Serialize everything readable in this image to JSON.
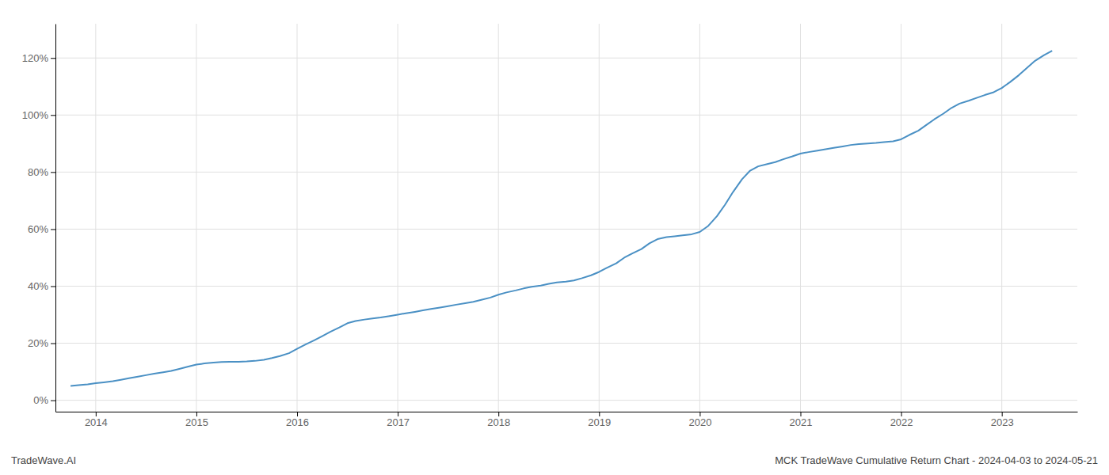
{
  "chart_data": {
    "type": "line",
    "title": "MCK TradeWave Cumulative Return Chart - 2024-04-03 to 2024-05-21",
    "annotations": [
      "TradeWave.AI"
    ],
    "color": "#4a90c4",
    "grid": true,
    "xlim": [
      2013.6,
      2023.75
    ],
    "xticks": [
      2014,
      2015,
      2016,
      2017,
      2018,
      2019,
      2020,
      2021,
      2022,
      2023
    ],
    "ylim": [
      -4,
      132
    ],
    "yticks": [
      {
        "value": 0,
        "label": "0%"
      },
      {
        "value": 20,
        "label": "20%"
      },
      {
        "value": 40,
        "label": "40%"
      },
      {
        "value": 60,
        "label": "60%"
      },
      {
        "value": 80,
        "label": "80%"
      },
      {
        "value": 100,
        "label": "100%"
      },
      {
        "value": 120,
        "label": "120%"
      }
    ],
    "x": [
      2013.75,
      2013.83,
      2013.92,
      2014.0,
      2014.08,
      2014.17,
      2014.25,
      2014.33,
      2014.42,
      2014.5,
      2014.58,
      2014.67,
      2014.75,
      2014.83,
      2014.92,
      2015.0,
      2015.08,
      2015.17,
      2015.25,
      2015.33,
      2015.42,
      2015.5,
      2015.58,
      2015.67,
      2015.75,
      2015.83,
      2015.92,
      2016.0,
      2016.08,
      2016.17,
      2016.25,
      2016.33,
      2016.42,
      2016.5,
      2016.58,
      2016.67,
      2016.75,
      2016.83,
      2016.92,
      2017.0,
      2017.08,
      2017.17,
      2017.25,
      2017.33,
      2017.42,
      2017.5,
      2017.58,
      2017.67,
      2017.75,
      2017.83,
      2017.92,
      2018.0,
      2018.08,
      2018.17,
      2018.25,
      2018.33,
      2018.42,
      2018.5,
      2018.58,
      2018.67,
      2018.75,
      2018.83,
      2018.92,
      2019.0,
      2019.08,
      2019.17,
      2019.25,
      2019.33,
      2019.42,
      2019.5,
      2019.58,
      2019.67,
      2019.75,
      2019.83,
      2019.92,
      2020.0,
      2020.08,
      2020.17,
      2020.25,
      2020.33,
      2020.42,
      2020.5,
      2020.58,
      2020.67,
      2020.75,
      2020.83,
      2020.92,
      2021.0,
      2021.08,
      2021.17,
      2021.25,
      2021.33,
      2021.42,
      2021.5,
      2021.58,
      2021.67,
      2021.75,
      2021.83,
      2021.92,
      2022.0,
      2022.08,
      2022.17,
      2022.25,
      2022.33,
      2022.42,
      2022.5,
      2022.58,
      2022.67,
      2022.75,
      2022.83,
      2022.92,
      2023.0,
      2023.08,
      2023.17,
      2023.25,
      2023.33,
      2023.42,
      2023.5
    ],
    "values": [
      5.0,
      5.3,
      5.6,
      6.0,
      6.3,
      6.7,
      7.2,
      7.7,
      8.3,
      8.8,
      9.3,
      9.8,
      10.3,
      11.0,
      11.8,
      12.5,
      12.9,
      13.2,
      13.4,
      13.5,
      13.5,
      13.6,
      13.8,
      14.2,
      14.8,
      15.5,
      16.5,
      18.0,
      19.5,
      21.0,
      22.5,
      24.0,
      25.5,
      27.0,
      27.8,
      28.3,
      28.7,
      29.0,
      29.5,
      30.0,
      30.5,
      31.0,
      31.5,
      32.0,
      32.5,
      33.0,
      33.5,
      34.0,
      34.5,
      35.2,
      36.0,
      37.0,
      37.8,
      38.5,
      39.2,
      39.8,
      40.2,
      40.8,
      41.3,
      41.6,
      42.0,
      42.8,
      43.8,
      45.0,
      46.5,
      48.0,
      50.0,
      51.5,
      53.0,
      55.0,
      56.5,
      57.2,
      57.5,
      57.8,
      58.2,
      59.0,
      61.0,
      64.5,
      68.5,
      73.0,
      77.5,
      80.5,
      82.0,
      82.8,
      83.5,
      84.5,
      85.5,
      86.5,
      87.0,
      87.5,
      88.0,
      88.5,
      89.0,
      89.5,
      89.8,
      90.0,
      90.2,
      90.5,
      90.8,
      91.5,
      93.0,
      94.5,
      96.5,
      98.5,
      100.5,
      102.5,
      104.0,
      105.0,
      106.0,
      107.0,
      108.0,
      109.5,
      111.5,
      114.0,
      116.5,
      119.0,
      121.0,
      122.5
    ]
  }
}
